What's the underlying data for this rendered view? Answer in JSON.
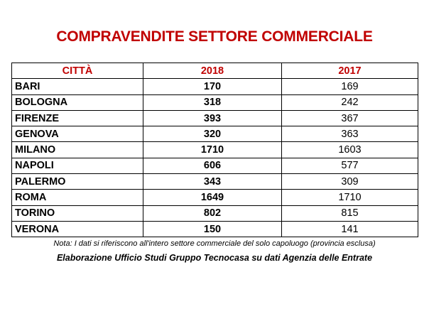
{
  "title": "COMPRAVENDITE SETTORE COMMERCIALE",
  "table": {
    "headers": [
      "CITTÀ",
      "2018",
      "2017"
    ],
    "rows": [
      {
        "city": "BARI",
        "y2018": "170",
        "y2017": "169"
      },
      {
        "city": "BOLOGNA",
        "y2018": "318",
        "y2017": "242"
      },
      {
        "city": "FIRENZE",
        "y2018": "393",
        "y2017": "367"
      },
      {
        "city": "GENOVA",
        "y2018": "320",
        "y2017": "363"
      },
      {
        "city": "MILANO",
        "y2018": "1710",
        "y2017": "1603"
      },
      {
        "city": "NAPOLI",
        "y2018": "606",
        "y2017": "577"
      },
      {
        "city": "PALERMO",
        "y2018": "343",
        "y2017": "309"
      },
      {
        "city": "ROMA",
        "y2018": "1649",
        "y2017": "1710"
      },
      {
        "city": "TORINO",
        "y2018": "802",
        "y2017": "815"
      },
      {
        "city": "VERONA",
        "y2018": "150",
        "y2017": "141"
      }
    ]
  },
  "note": "Nota: I dati si riferiscono all'intero settore commerciale del solo capoluogo (provincia esclusa)",
  "source": "Elaborazione Ufficio Studi Gruppo Tecnocasa su dati Agenzia delle Entrate",
  "colors": {
    "title": "#c00000",
    "header": "#c00000",
    "border": "#000000"
  }
}
